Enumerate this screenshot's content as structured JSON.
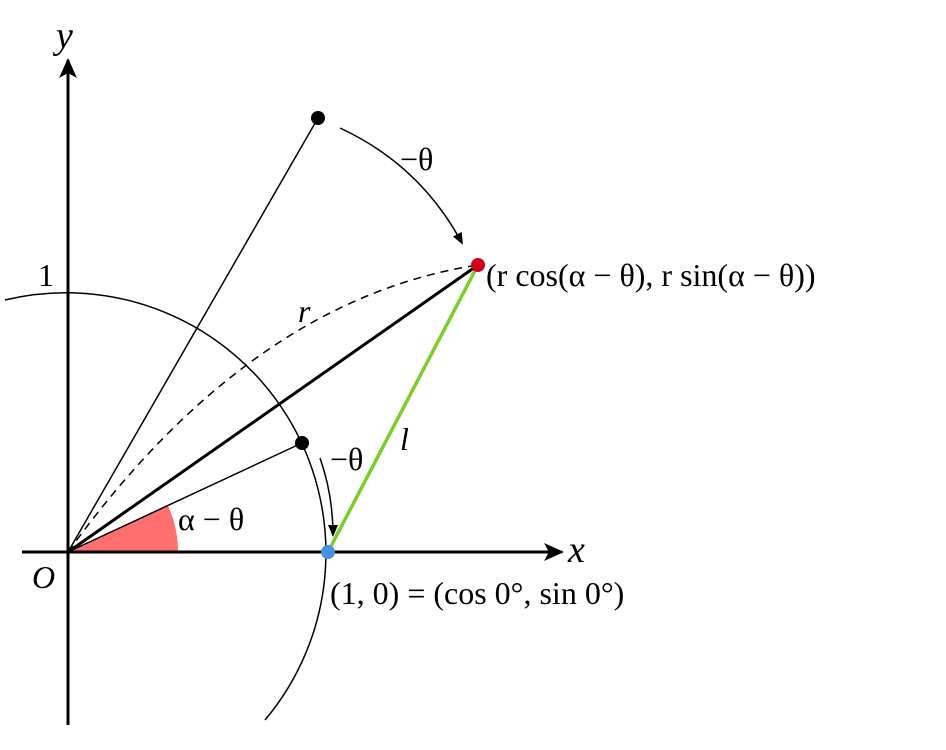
{
  "axes": {
    "x": "x",
    "y": "y",
    "one": "1",
    "origin": "O"
  },
  "labels": {
    "rotation_top": "−θ",
    "rotation_bottom": "−θ",
    "radius": "r",
    "chord": "l",
    "angle": "α − θ",
    "rotated_point": "(r cos(α − θ), r sin(α − θ))",
    "unit_point": "(1, 0) = (cos 0°, sin 0°)"
  }
}
